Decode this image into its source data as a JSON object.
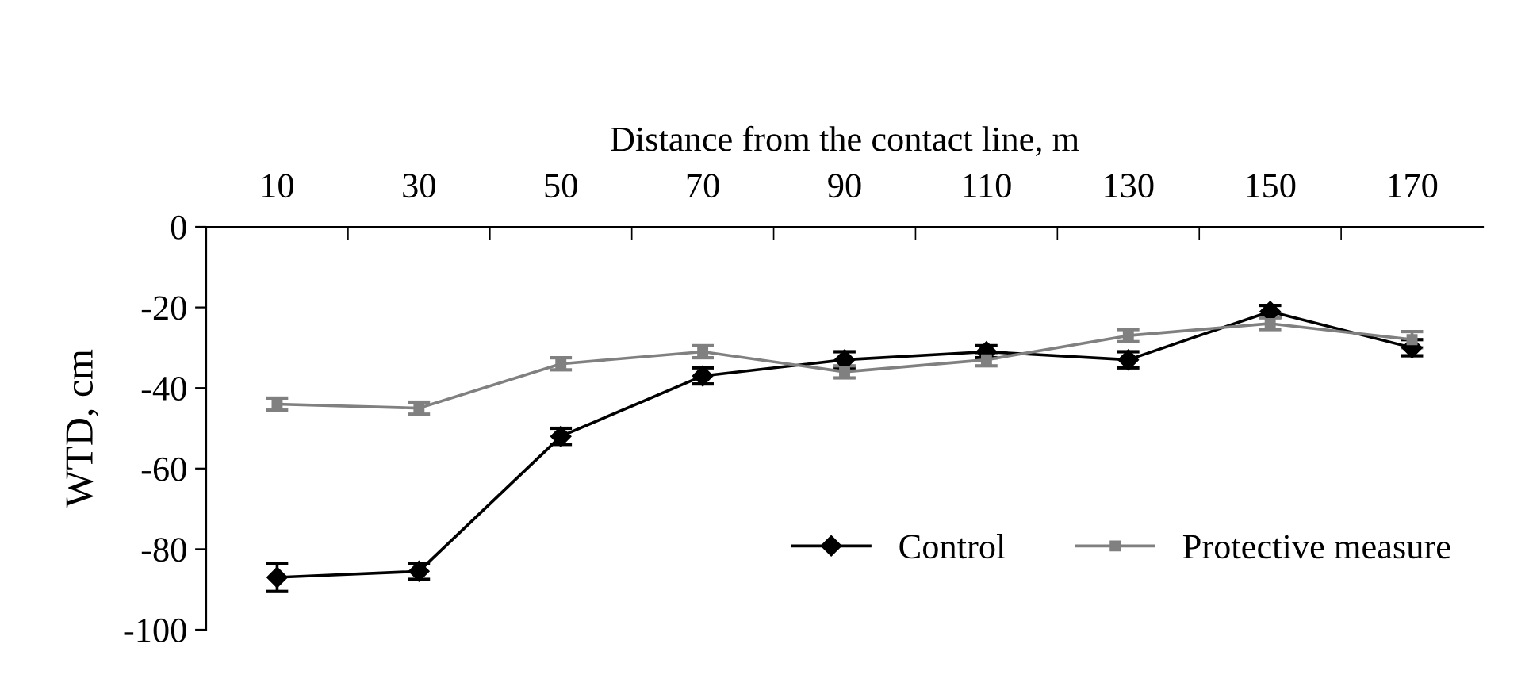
{
  "chart_data": {
    "type": "line",
    "xlabel": "Distance from the contact line, m",
    "ylabel": "WTD, cm",
    "categories": [
      "10",
      "30",
      "50",
      "70",
      "90",
      "110",
      "130",
      "150",
      "170"
    ],
    "ylim": [
      -100,
      0
    ],
    "yticks": [
      -100,
      -80,
      -60,
      -40,
      -20,
      0
    ],
    "grid": false,
    "legend": "bottom right",
    "series": [
      {
        "name": "Control",
        "color": "#000000",
        "marker": "diamond",
        "values": [
          -87,
          -85.5,
          -52,
          -37,
          -33,
          -31,
          -33,
          -21,
          -30
        ],
        "errors": [
          3.5,
          2,
          2,
          2,
          2,
          1.5,
          2,
          1.5,
          2
        ]
      },
      {
        "name": "Protective measure",
        "color": "#808080",
        "marker": "square",
        "values": [
          -44,
          -45,
          -34,
          -31,
          -36,
          -33,
          -27,
          -24,
          -28
        ],
        "errors": [
          1.5,
          1.5,
          1.5,
          1.5,
          1.5,
          1.5,
          1.5,
          1.5,
          2
        ]
      }
    ]
  }
}
